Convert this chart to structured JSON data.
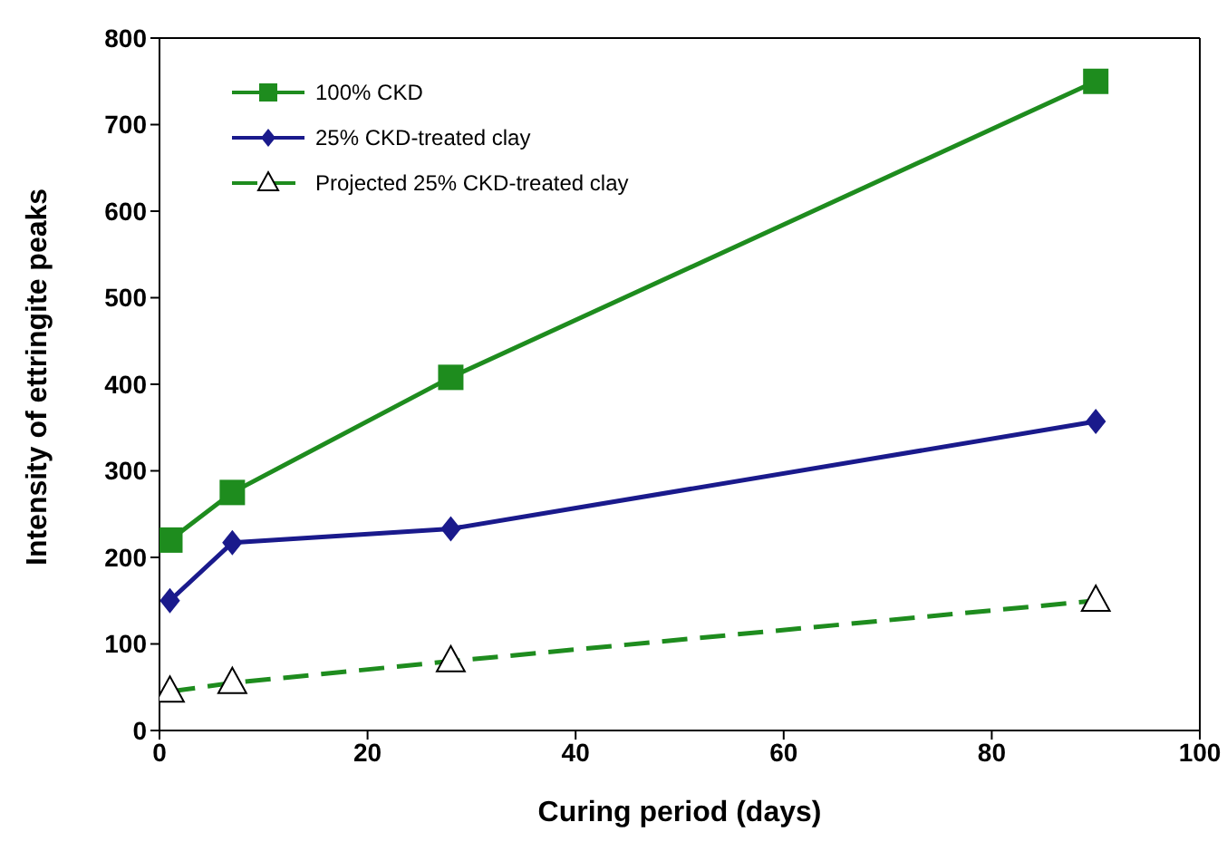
{
  "chart_data": {
    "type": "line",
    "xlabel": "Curing period (days)",
    "ylabel": "Intensity of ettringite peaks",
    "x": [
      1,
      7,
      28,
      90
    ],
    "xlim": [
      0,
      100
    ],
    "xticks": [
      0,
      20,
      40,
      60,
      80,
      100
    ],
    "ylim": [
      0,
      800
    ],
    "yticks": [
      0,
      100,
      200,
      300,
      400,
      500,
      600,
      700,
      800
    ],
    "grid": false,
    "legend": "top left",
    "series": [
      {
        "name": "100% CKD",
        "color": "#1e8c1e",
        "values": [
          220,
          275,
          408,
          750
        ],
        "marker": "square",
        "line_style": "solid"
      },
      {
        "name": "25% CKD-treated clay",
        "color": "#1a1a8c",
        "values": [
          150,
          217,
          233,
          357
        ],
        "marker": "diamond",
        "line_style": "solid"
      },
      {
        "name": "Projected 25% CKD-treated clay",
        "color": "#1e8c1e",
        "values": [
          45,
          55,
          80,
          150
        ],
        "marker": "triangle",
        "line_style": "dashed"
      }
    ]
  }
}
